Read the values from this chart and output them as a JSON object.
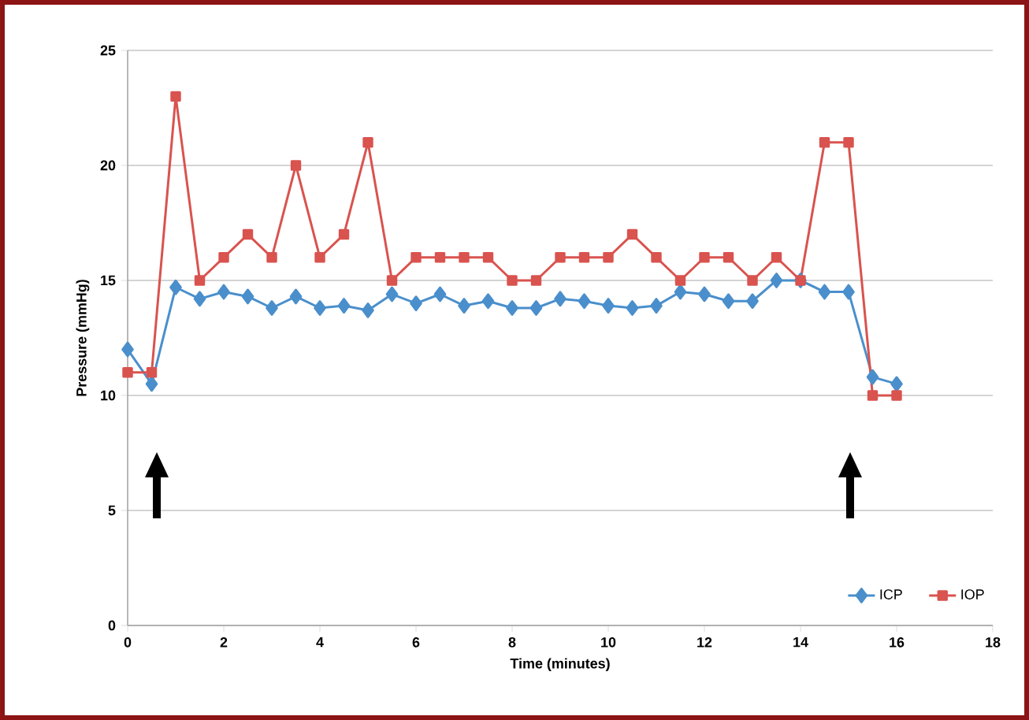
{
  "chart_data": {
    "type": "line",
    "xlabel": "Time (minutes)",
    "ylabel": "Pressure (mmHg)",
    "x": [
      0,
      0.5,
      1,
      1.5,
      2,
      2.5,
      3,
      3.5,
      4,
      4.5,
      5,
      5.5,
      6,
      6.5,
      7,
      7.5,
      8,
      8.5,
      9,
      9.5,
      10,
      10.5,
      11,
      11.5,
      12,
      12.5,
      13,
      13.5,
      14,
      14.5,
      15,
      15.5,
      16
    ],
    "series": [
      {
        "name": "ICP",
        "color": "#4a8fcc",
        "marker": "diamond",
        "values": [
          12,
          10.5,
          14.7,
          14.2,
          14.5,
          14.3,
          13.8,
          14.3,
          13.8,
          13.9,
          13.7,
          14.4,
          14.0,
          14.4,
          13.9,
          14.1,
          13.8,
          13.8,
          14.2,
          14.1,
          13.9,
          13.8,
          13.9,
          14.5,
          14.4,
          14.1,
          14.1,
          15.0,
          15.0,
          14.5,
          14.5,
          10.8,
          10.5
        ]
      },
      {
        "name": "IOP",
        "color": "#d9534f",
        "marker": "square",
        "values": [
          11,
          11,
          23,
          15,
          16,
          17,
          16,
          20,
          16,
          17,
          21,
          15,
          16,
          16,
          16,
          16,
          15,
          15,
          16,
          16,
          16,
          17,
          16,
          15,
          16,
          16,
          15,
          16,
          15,
          21,
          21,
          10,
          10
        ]
      }
    ],
    "xlim": [
      0,
      18
    ],
    "xticks": [
      0,
      2,
      4,
      6,
      8,
      10,
      12,
      14,
      16,
      18
    ],
    "ylim": [
      0,
      25
    ],
    "yticks": [
      0,
      5,
      10,
      15,
      20,
      25
    ],
    "grid": "y",
    "legend": "bottom right"
  }
}
